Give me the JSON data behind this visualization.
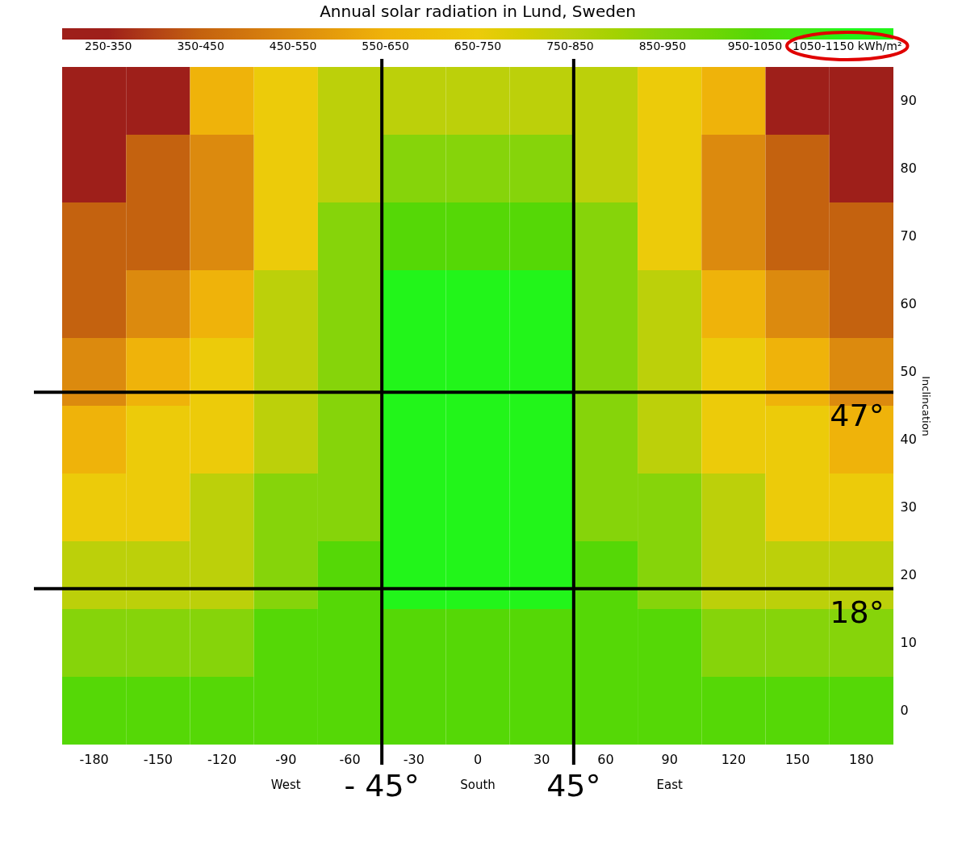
{
  "chart_data": {
    "type": "heatmap",
    "title": "Annual solar radiation in Lund, Sweden",
    "ylabel": "Inclincation",
    "categories": [
      "-180",
      "-150",
      "-120",
      "-90",
      "-60",
      "-30",
      "0",
      "30",
      "60",
      "90",
      "120",
      "150",
      "180"
    ],
    "y_categories": [
      "90",
      "80",
      "70",
      "60",
      "50",
      "40",
      "30",
      "20",
      "10",
      "0"
    ],
    "cells": [
      [
        300,
        300,
        600,
        700,
        800,
        800,
        800,
        800,
        800,
        700,
        600,
        300,
        300
      ],
      [
        300,
        400,
        500,
        700,
        800,
        900,
        900,
        900,
        800,
        700,
        500,
        400,
        300
      ],
      [
        400,
        400,
        500,
        700,
        900,
        1000,
        1000,
        1000,
        900,
        700,
        500,
        400,
        400
      ],
      [
        400,
        500,
        600,
        800,
        900,
        1100,
        1100,
        1100,
        900,
        800,
        600,
        500,
        400
      ],
      [
        500,
        600,
        700,
        800,
        900,
        1100,
        1100,
        1100,
        900,
        800,
        700,
        600,
        500
      ],
      [
        600,
        700,
        700,
        800,
        900,
        1100,
        1100,
        1100,
        900,
        800,
        700,
        700,
        600
      ],
      [
        700,
        700,
        800,
        900,
        900,
        1100,
        1100,
        1100,
        900,
        900,
        800,
        700,
        700
      ],
      [
        800,
        800,
        800,
        900,
        1000,
        1100,
        1100,
        1100,
        1000,
        900,
        800,
        800,
        800
      ],
      [
        900,
        900,
        900,
        1000,
        1000,
        1000,
        1000,
        1000,
        1000,
        1000,
        900,
        900,
        900
      ],
      [
        1000,
        1000,
        1000,
        1000,
        1000,
        1000,
        1000,
        1000,
        1000,
        1000,
        1000,
        1000,
        1000
      ]
    ],
    "clim": [
      250,
      1150
    ],
    "cticks": [
      {
        "value": 300,
        "label": "250-350"
      },
      {
        "value": 400,
        "label": "350-450"
      },
      {
        "value": 500,
        "label": "450-550"
      },
      {
        "value": 600,
        "label": "550-650"
      },
      {
        "value": 700,
        "label": "650-750"
      },
      {
        "value": 800,
        "label": "750-850"
      },
      {
        "value": 900,
        "label": "850-950"
      },
      {
        "value": 1000,
        "label": "950-1050"
      },
      {
        "value": 1100,
        "label": "1050-1150 kWh/m²"
      }
    ],
    "colors": [
      "#9e1f1a",
      "#c4620f",
      "#dc8a0e",
      "#efb30a",
      "#eccb0a",
      "#bcd00a",
      "#86d40a",
      "#55d806",
      "#22f51a"
    ],
    "annotations": [
      "West",
      "South",
      "East",
      "- 45°",
      "45°",
      "47°",
      "18°"
    ]
  }
}
